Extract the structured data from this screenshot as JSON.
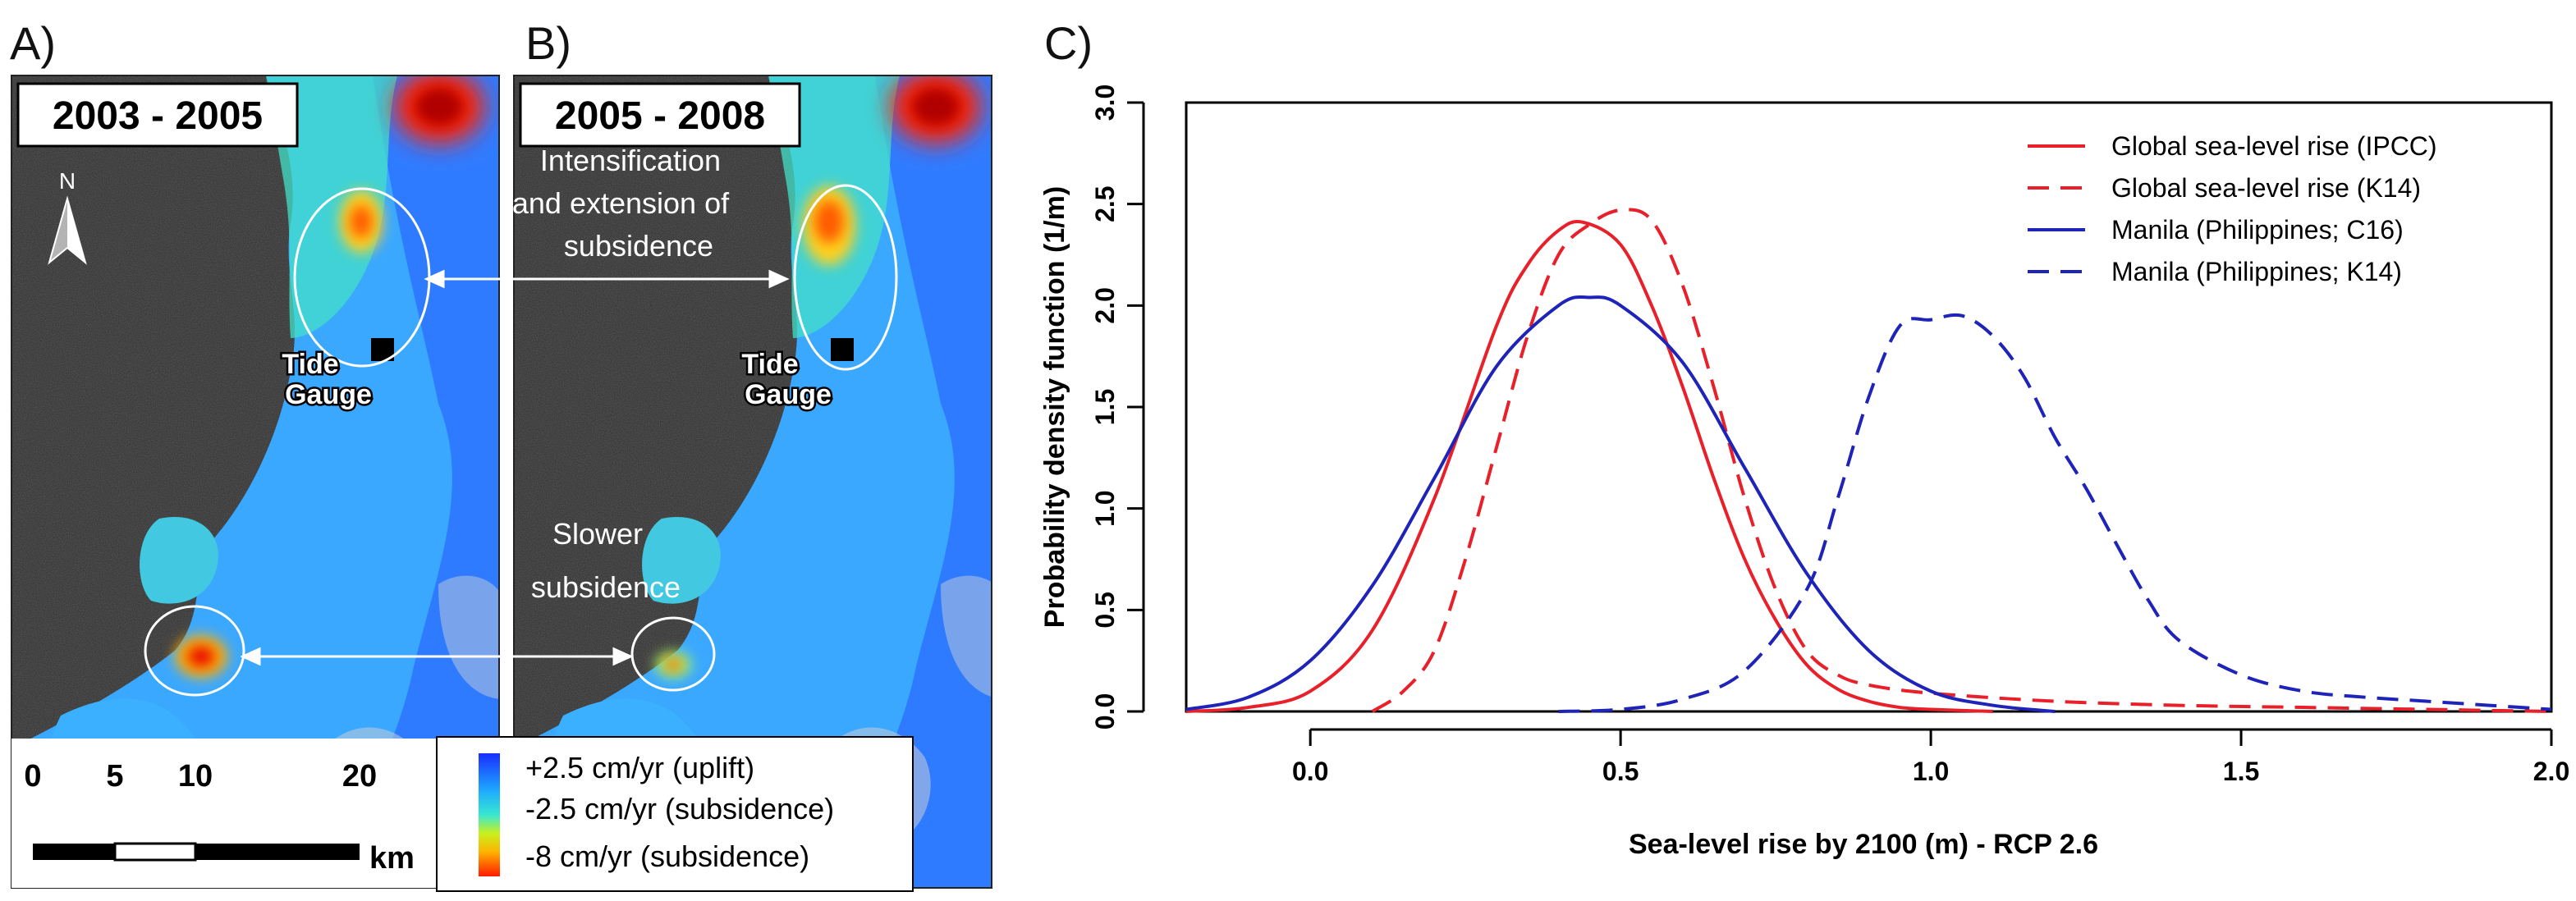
{
  "panel_a": {
    "letter": "A)",
    "period": "2003 - 2005",
    "north_label": "N",
    "tide_gauge_line1": "Tide",
    "tide_gauge_line2": "Gauge"
  },
  "panel_b": {
    "letter": "B)",
    "period": "2005 - 2008",
    "annotation_intensification": [
      "Intensification",
      "and extension of",
      "subsidence"
    ],
    "annotation_slower": [
      "Slower",
      "subsidence"
    ],
    "tide_gauge_line1": "Tide",
    "tide_gauge_line2": "Gauge"
  },
  "scale_bar": {
    "ticks": [
      "0",
      "5",
      "10",
      "20"
    ],
    "unit": "km"
  },
  "color_legend": {
    "items": [
      {
        "label": "+2.5 cm/yr (uplift)"
      },
      {
        "label": "-2.5 cm/yr (subsidence)"
      },
      {
        "label": "-8 cm/yr (subsidence)"
      }
    ]
  },
  "colors": {
    "red": "#e8202a",
    "blue": "#1f24b8",
    "uplift": "#1e3cff",
    "subsidence": "#ff2a00"
  },
  "chart_data": {
    "panel_label": "C)",
    "type": "line",
    "xlabel": "Sea-level rise by 2100 (m) - RCP 2.6",
    "ylabel": "Probability density function (1/m)",
    "xlim": [
      -0.2,
      2.0
    ],
    "ylim": [
      0,
      3.0
    ],
    "x_ticks": [
      "0.0",
      "0.5",
      "1.0",
      "1.5",
      "2.0"
    ],
    "y_ticks": [
      "0.0",
      "0.5",
      "1.0",
      "1.5",
      "2.0",
      "2.5",
      "3.0"
    ],
    "legend": "top-right",
    "series": [
      {
        "name": "Global sea-level rise (IPCC)",
        "color": "#e8202a",
        "dash": "solid",
        "x": [
          -0.2,
          -0.1,
          0.0,
          0.1,
          0.2,
          0.3,
          0.35,
          0.4,
          0.44,
          0.5,
          0.55,
          0.6,
          0.65,
          0.7,
          0.75,
          0.8,
          0.85,
          0.9,
          0.95,
          1.0,
          1.1
        ],
        "y": [
          0.0,
          0.02,
          0.1,
          0.4,
          1.05,
          1.9,
          2.2,
          2.37,
          2.41,
          2.3,
          2.0,
          1.6,
          1.15,
          0.75,
          0.45,
          0.23,
          0.11,
          0.05,
          0.02,
          0.01,
          0.0
        ]
      },
      {
        "name": "Global sea-level rise (K14)",
        "color": "#e8202a",
        "dash": "dashed",
        "x": [
          0.1,
          0.15,
          0.2,
          0.25,
          0.3,
          0.35,
          0.4,
          0.45,
          0.5,
          0.55,
          0.6,
          0.65,
          0.7,
          0.75,
          0.8,
          0.85,
          0.9,
          1.0,
          1.2,
          1.4,
          1.6,
          1.8,
          2.0
        ],
        "y": [
          0.0,
          0.1,
          0.3,
          0.75,
          1.3,
          1.85,
          2.25,
          2.4,
          2.47,
          2.42,
          2.1,
          1.6,
          1.05,
          0.6,
          0.3,
          0.18,
          0.13,
          0.09,
          0.05,
          0.03,
          0.02,
          0.01,
          0.0
        ]
      },
      {
        "name": "Manila (Philippines; C16)",
        "color": "#1f24b8",
        "dash": "solid",
        "x": [
          -0.2,
          -0.1,
          0.0,
          0.1,
          0.2,
          0.3,
          0.4,
          0.45,
          0.5,
          0.6,
          0.7,
          0.8,
          0.9,
          1.0,
          1.1,
          1.2
        ],
        "y": [
          0.01,
          0.07,
          0.25,
          0.62,
          1.15,
          1.7,
          2.0,
          2.04,
          2.0,
          1.72,
          1.2,
          0.68,
          0.3,
          0.1,
          0.03,
          0.0
        ]
      },
      {
        "name": "Manila (Philippines; K14)",
        "color": "#1f24b8",
        "dash": "dashed",
        "x": [
          0.4,
          0.5,
          0.6,
          0.7,
          0.8,
          0.85,
          0.9,
          0.95,
          1.0,
          1.05,
          1.1,
          1.15,
          1.2,
          1.25,
          1.3,
          1.35,
          1.4,
          1.5,
          1.6,
          1.7,
          1.8,
          1.9,
          2.0
        ],
        "y": [
          0.0,
          0.01,
          0.06,
          0.2,
          0.6,
          1.05,
          1.55,
          1.9,
          1.93,
          1.95,
          1.85,
          1.65,
          1.35,
          1.1,
          0.82,
          0.55,
          0.35,
          0.18,
          0.1,
          0.07,
          0.05,
          0.03,
          0.01
        ]
      }
    ]
  }
}
